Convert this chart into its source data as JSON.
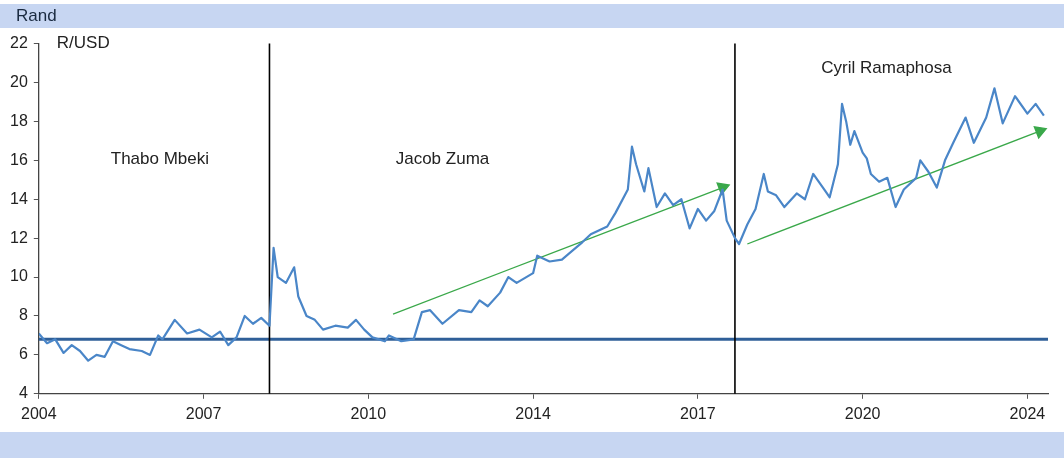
{
  "chart_data": {
    "type": "line",
    "title": "R/USD",
    "ylabel": "Rand",
    "xlim": [
      "2004-01",
      "2024-06"
    ],
    "xticks": [
      {
        "value": "2004-01",
        "label": "2004"
      },
      {
        "value": "2007-05",
        "label": "2007"
      },
      {
        "value": "2010-09",
        "label": "2010"
      },
      {
        "value": "2014-01",
        "label": "2014"
      },
      {
        "value": "2017-05",
        "label": "2017"
      },
      {
        "value": "2020-09",
        "label": "2020"
      },
      {
        "value": "2024-01",
        "label": "2024"
      }
    ],
    "ylim": [
      4,
      22
    ],
    "yticks": [
      4,
      6,
      8,
      10,
      12,
      14,
      16,
      18,
      20,
      22
    ],
    "grid": false,
    "legend": false,
    "marker": "none",
    "line_style": "solid",
    "series": [
      {
        "color": "#4a86c8",
        "x": [
          "2004-01",
          "2004-03",
          "2004-05",
          "2004-07",
          "2004-09",
          "2004-11",
          "2005-01",
          "2005-03",
          "2005-05",
          "2005-07",
          "2005-09",
          "2005-11",
          "2006-02",
          "2006-04",
          "2006-06",
          "2006-07",
          "2006-10",
          "2007-01",
          "2007-04",
          "2007-07",
          "2007-09",
          "2007-11",
          "2008-01",
          "2008-03",
          "2008-05",
          "2008-07",
          "2008-09",
          "2008-10",
          "2008-11",
          "2009-01",
          "2009-03",
          "2009-04",
          "2009-06",
          "2009-08",
          "2009-10",
          "2010-01",
          "2010-04",
          "2010-06",
          "2010-08",
          "2010-10",
          "2011-01",
          "2011-02",
          "2011-05",
          "2011-08",
          "2011-10",
          "2011-12",
          "2012-03",
          "2012-07",
          "2012-10",
          "2012-12",
          "2013-02",
          "2013-05",
          "2013-07",
          "2013-09",
          "2014-01",
          "2014-02",
          "2014-05",
          "2014-08",
          "2015-01",
          "2015-03",
          "2015-07",
          "2015-09",
          "2015-12",
          "2016-01",
          "2016-02",
          "2016-04",
          "2016-05",
          "2016-07",
          "2016-09",
          "2016-11",
          "2017-01",
          "2017-03",
          "2017-05",
          "2017-07",
          "2017-09",
          "2017-11",
          "2017-12",
          "2018-02",
          "2018-03",
          "2018-05",
          "2018-07",
          "2018-09",
          "2018-10",
          "2018-12",
          "2019-02",
          "2019-05",
          "2019-07",
          "2019-09",
          "2019-12",
          "2020-01",
          "2020-03",
          "2020-04",
          "2020-05",
          "2020-06",
          "2020-07",
          "2020-09",
          "2020-10",
          "2020-11",
          "2021-01",
          "2021-03",
          "2021-05",
          "2021-07",
          "2021-10",
          "2021-11",
          "2022-01",
          "2022-03",
          "2022-05",
          "2022-07",
          "2022-10",
          "2022-12",
          "2023-03",
          "2023-05",
          "2023-07",
          "2023-10",
          "2024-01",
          "2024-03",
          "2024-05"
        ],
        "values": [
          7.1,
          6.6,
          6.8,
          6.1,
          6.5,
          6.2,
          5.7,
          6.0,
          5.9,
          6.7,
          6.5,
          6.3,
          6.2,
          6.0,
          7.0,
          6.8,
          7.8,
          7.1,
          7.3,
          6.9,
          7.2,
          6.5,
          6.9,
          8.0,
          7.6,
          7.9,
          7.5,
          11.5,
          10.0,
          9.7,
          10.5,
          9.0,
          8.0,
          7.8,
          7.3,
          7.5,
          7.4,
          7.8,
          7.3,
          6.9,
          6.7,
          7.0,
          6.7,
          6.8,
          8.2,
          8.3,
          7.6,
          8.3,
          8.2,
          8.8,
          8.5,
          9.2,
          10.0,
          9.7,
          10.2,
          11.1,
          10.8,
          10.9,
          11.8,
          12.2,
          12.6,
          13.3,
          14.5,
          16.7,
          15.8,
          14.4,
          15.6,
          13.6,
          14.3,
          13.7,
          14.0,
          12.5,
          13.5,
          12.9,
          13.4,
          14.5,
          12.9,
          12.0,
          11.7,
          12.7,
          13.5,
          15.3,
          14.4,
          14.2,
          13.6,
          14.3,
          14.0,
          15.3,
          14.4,
          14.1,
          15.8,
          18.9,
          18.0,
          16.8,
          17.5,
          16.4,
          16.1,
          15.3,
          14.9,
          15.1,
          13.6,
          14.5,
          15.1,
          16.0,
          15.4,
          14.6,
          16.0,
          16.9,
          18.2,
          16.9,
          18.2,
          19.7,
          17.9,
          19.3,
          18.4,
          18.9,
          18.3
        ]
      },
      {
        "color": "#3aa84a",
        "marker": "triangle",
        "x": [
          "2011-03",
          "2017-11"
        ],
        "values": [
          8.1,
          14.6
        ]
      },
      {
        "color": "#3aa84a",
        "marker": "triangle",
        "x": [
          "2018-05",
          "2024-04"
        ],
        "values": [
          11.7,
          17.5
        ]
      }
    ],
    "ref_lines": [
      {
        "axis": "y",
        "value": 6.8,
        "color": "#2f5f98"
      },
      {
        "axis": "x",
        "value": "2008-09",
        "color": "#000000"
      },
      {
        "axis": "x",
        "value": "2018-02",
        "color": "#000000"
      }
    ],
    "annotations": [
      "Thabo Mbeki",
      "Jacob Zuma",
      "Cyril Ramaphosa"
    ]
  }
}
